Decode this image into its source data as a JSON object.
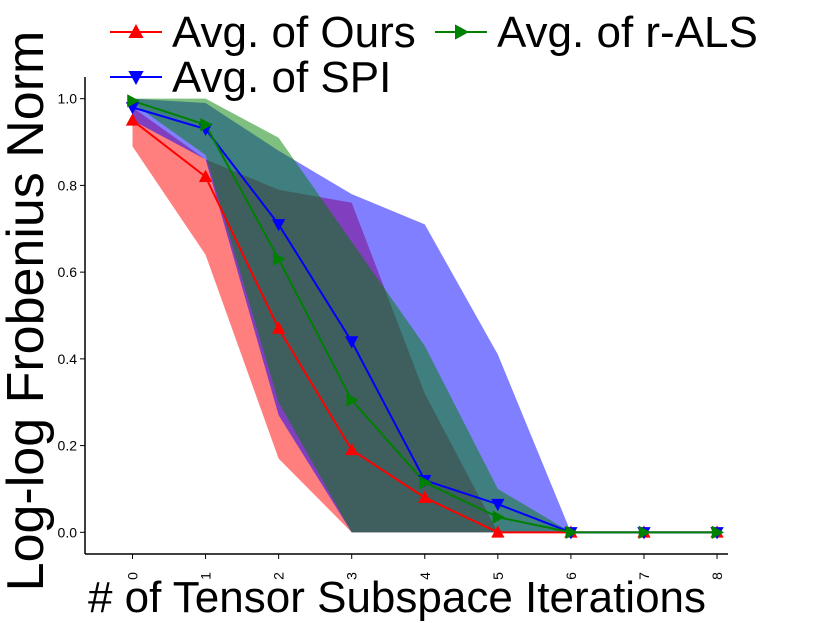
{
  "chart_data": {
    "type": "line",
    "title": "",
    "xlabel": "# of Tensor Subspace Iterations",
    "ylabel": "Log-log Frobenius Norm",
    "x": [
      0,
      1,
      2,
      3,
      4,
      5,
      6,
      7,
      8
    ],
    "xlim": [
      -0.65,
      8.15
    ],
    "ylim": [
      -0.05,
      1.05
    ],
    "xticks": [
      "0",
      "1",
      "2",
      "3",
      "4",
      "5",
      "6",
      "7",
      "8"
    ],
    "yticks": [
      "0.0",
      "0.2",
      "0.4",
      "0.6",
      "0.8",
      "1.0"
    ],
    "grid": false,
    "legend_position": "top",
    "series": [
      {
        "name": "Avg. of Ours",
        "color": "#ff0000",
        "marker": "triangle-up",
        "values": [
          0.95,
          0.82,
          0.47,
          0.19,
          0.08,
          0.0,
          0.0,
          0.0,
          0.0
        ],
        "band_upper": [
          0.98,
          0.86,
          0.79,
          0.76,
          0.32,
          0.0,
          0.0,
          0.0,
          0.0
        ],
        "band_lower": [
          0.89,
          0.64,
          0.17,
          0.0,
          0.0,
          0.0,
          0.0,
          0.0,
          0.0
        ]
      },
      {
        "name": "Avg. of SPI",
        "color": "#0000ff",
        "marker": "triangle-down",
        "values": [
          0.98,
          0.93,
          0.71,
          0.44,
          0.12,
          0.065,
          0.0,
          0.0,
          0.0
        ],
        "band_upper": [
          1.0,
          0.99,
          0.88,
          0.78,
          0.71,
          0.41,
          0.0,
          0.0,
          0.0
        ],
        "band_lower": [
          0.95,
          0.86,
          0.27,
          0.0,
          0.0,
          0.0,
          0.0,
          0.0,
          0.0
        ]
      },
      {
        "name": "Avg. of r-ALS",
        "color": "#008000",
        "marker": "triangle-right",
        "values": [
          0.995,
          0.94,
          0.63,
          0.305,
          0.115,
          0.035,
          0.0,
          0.0,
          0.0
        ],
        "band_upper": [
          1.0,
          1.0,
          0.91,
          0.67,
          0.43,
          0.1,
          0.0,
          0.0,
          0.0
        ],
        "band_lower": [
          0.99,
          0.87,
          0.3,
          0.0,
          0.0,
          0.0,
          0.0,
          0.0,
          0.0
        ]
      }
    ]
  }
}
